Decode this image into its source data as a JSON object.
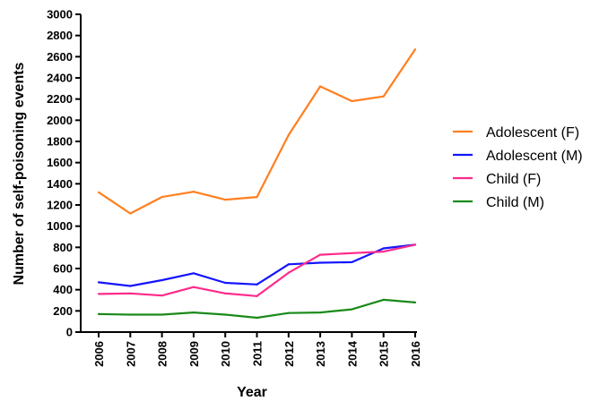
{
  "chart_data": {
    "type": "line",
    "xlabel": "Year",
    "ylabel": "Number of self-poisoning events",
    "ylim": [
      0,
      3000
    ],
    "yticks": [
      0,
      200,
      400,
      600,
      800,
      1000,
      1200,
      1400,
      1600,
      1800,
      2000,
      2200,
      2400,
      2600,
      2800,
      3000
    ],
    "categories": [
      "2006",
      "2007",
      "2008",
      "2009",
      "2010",
      "2011",
      "2012",
      "2013",
      "2014",
      "2015",
      "2016"
    ],
    "legend_position": "right",
    "grid": false,
    "series": [
      {
        "name": "Adolescent (F)",
        "color": "#ff7f1f",
        "values": [
          1320,
          1120,
          1275,
          1325,
          1250,
          1275,
          1860,
          2320,
          2180,
          2225,
          2670
        ]
      },
      {
        "name": "Adolescent (M)",
        "color": "#1414ff",
        "values": [
          470,
          435,
          490,
          555,
          465,
          450,
          640,
          655,
          660,
          790,
          825
        ]
      },
      {
        "name": "Child (F)",
        "color": "#ff2a8a",
        "values": [
          360,
          365,
          345,
          425,
          365,
          340,
          560,
          730,
          745,
          760,
          825
        ]
      },
      {
        "name": "Child (M)",
        "color": "#1a8a1a",
        "values": [
          170,
          165,
          165,
          185,
          165,
          135,
          180,
          185,
          215,
          305,
          280
        ]
      }
    ]
  }
}
